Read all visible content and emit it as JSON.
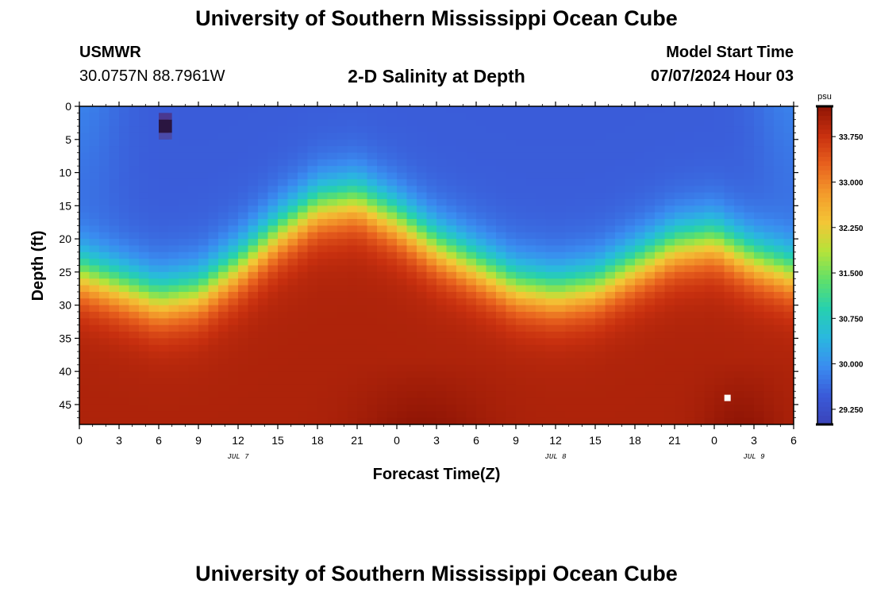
{
  "header": {
    "title": "University of Southern Mississippi Ocean Cube",
    "station": "USMWR",
    "coords": "30.0757N  88.7961W",
    "subtitle": "2-D Salinity at Depth",
    "model_start_label": "Model Start Time",
    "model_start_value": "07/07/2024 Hour 03",
    "footer_title": "University of Southern Mississippi Ocean Cube"
  },
  "colors": {
    "scale": [
      "#3a43b8",
      "#3a5ad8",
      "#3a8cf0",
      "#2ab7e0",
      "#26d0b0",
      "#5fe06a",
      "#b5e33a",
      "#f3c636",
      "#f39a2b",
      "#e8611e",
      "#c8300f",
      "#901505"
    ],
    "axis": "#000000",
    "marker": "#ffffff"
  },
  "chart_data": {
    "type": "heatmap",
    "title": "2-D Salinity at Depth",
    "xlabel": "Forecast Time(Z)",
    "ylabel": "Depth (ft)",
    "x_tick_labels": [
      "0",
      "3",
      "6",
      "9",
      "12",
      "15",
      "18",
      "21",
      "0",
      "3",
      "6",
      "9",
      "12",
      "15",
      "18",
      "21",
      "0",
      "3",
      "6"
    ],
    "x_hours": [
      0,
      3,
      6,
      9,
      12,
      15,
      18,
      21,
      24,
      27,
      30,
      33,
      36,
      39,
      42,
      45,
      48,
      51,
      54
    ],
    "date_labels": [
      {
        "label": "JUL 7",
        "hour": 12
      },
      {
        "label": "JUL 8",
        "hour": 36
      },
      {
        "label": "JUL 9",
        "hour": 51
      }
    ],
    "y_ticks": [
      0,
      5,
      10,
      15,
      20,
      25,
      30,
      35,
      40,
      45
    ],
    "xlim": [
      0,
      54
    ],
    "ylim": [
      0,
      48
    ],
    "colorbar": {
      "unit": "psu",
      "min": 29.0,
      "max": 34.25,
      "tick_labels": [
        "33.750",
        "33.000",
        "32.250",
        "31.500",
        "30.750",
        "30.000",
        "29.250"
      ],
      "tick_values": [
        33.75,
        33.0,
        32.25,
        31.5,
        30.75,
        30.0,
        29.25
      ]
    },
    "halocline": {
      "hours": [
        0,
        3,
        6,
        9,
        12,
        15,
        18,
        21,
        24,
        27,
        30,
        33,
        36,
        39,
        42,
        45,
        48,
        51,
        54
      ],
      "depth_ft": [
        25,
        27,
        29,
        28,
        24,
        19,
        15,
        14,
        17,
        21,
        24,
        27,
        28,
        27,
        24,
        21,
        20,
        23,
        25
      ]
    },
    "surface_salinity": 29.5,
    "bottom_salinity": 34.0,
    "anomaly": {
      "hour": 6.5,
      "depth_range_ft": [
        1,
        5
      ],
      "value": 34.2
    },
    "marker": {
      "hour": 49,
      "depth_ft": 44
    }
  }
}
